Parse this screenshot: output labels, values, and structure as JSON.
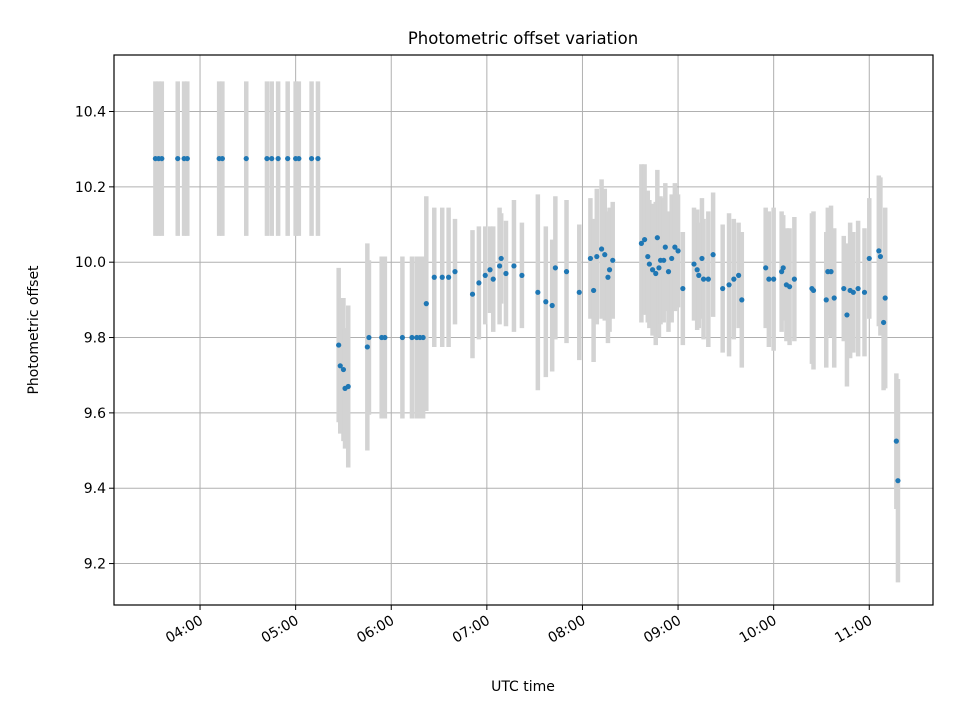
{
  "chart_data": {
    "type": "scatter",
    "title": "Photometric offset variation",
    "xlabel": "UTC time",
    "ylabel": "Photometric offset",
    "x_axis": "time",
    "xlim": [
      "03:06",
      "11:40"
    ],
    "ylim": [
      9.09,
      10.55
    ],
    "xticks": [
      "04:00",
      "05:00",
      "06:00",
      "07:00",
      "08:00",
      "09:00",
      "10:00",
      "11:00"
    ],
    "yticks": [
      9.2,
      9.4,
      9.6,
      9.8,
      10.0,
      10.2,
      10.4
    ],
    "grid": true,
    "colors": {
      "point": "#1f77b4",
      "errorbar": "#d3d3d3",
      "grid": "#b0b0b0"
    },
    "series": [
      {
        "error_bars": true,
        "points": [
          {
            "t": "03:32",
            "y": 10.275,
            "err": 0.205
          },
          {
            "t": "03:34",
            "y": 10.275,
            "err": 0.205
          },
          {
            "t": "03:36",
            "y": 10.275,
            "err": 0.205
          },
          {
            "t": "03:46",
            "y": 10.275,
            "err": 0.205
          },
          {
            "t": "03:50",
            "y": 10.275,
            "err": 0.205
          },
          {
            "t": "03:52",
            "y": 10.275,
            "err": 0.205
          },
          {
            "t": "04:12",
            "y": 10.275,
            "err": 0.205
          },
          {
            "t": "04:14",
            "y": 10.275,
            "err": 0.205
          },
          {
            "t": "04:29",
            "y": 10.275,
            "err": 0.205
          },
          {
            "t": "04:42",
            "y": 10.275,
            "err": 0.205
          },
          {
            "t": "04:45",
            "y": 10.275,
            "err": 0.205
          },
          {
            "t": "04:49",
            "y": 10.275,
            "err": 0.205
          },
          {
            "t": "04:55",
            "y": 10.275,
            "err": 0.205
          },
          {
            "t": "05:00",
            "y": 10.275,
            "err": 0.205
          },
          {
            "t": "05:02",
            "y": 10.275,
            "err": 0.205
          },
          {
            "t": "05:10",
            "y": 10.275,
            "err": 0.205
          },
          {
            "t": "05:14",
            "y": 10.275,
            "err": 0.205
          },
          {
            "t": "05:27",
            "y": 9.78,
            "err": 0.205
          },
          {
            "t": "05:28",
            "y": 9.725,
            "err": 0.18
          },
          {
            "t": "05:30",
            "y": 9.715,
            "err": 0.19
          },
          {
            "t": "05:31",
            "y": 9.665,
            "err": 0.16
          },
          {
            "t": "05:33",
            "y": 9.67,
            "err": 0.215
          },
          {
            "t": "05:45",
            "y": 9.775,
            "err": 0.275
          },
          {
            "t": "05:46",
            "y": 9.8,
            "err": 0.205
          },
          {
            "t": "05:54",
            "y": 9.8,
            "err": 0.215
          },
          {
            "t": "05:56",
            "y": 9.8,
            "err": 0.215
          },
          {
            "t": "06:07",
            "y": 9.8,
            "err": 0.215
          },
          {
            "t": "06:13",
            "y": 9.8,
            "err": 0.215
          },
          {
            "t": "06:16",
            "y": 9.8,
            "err": 0.215
          },
          {
            "t": "06:18",
            "y": 9.8,
            "err": 0.215
          },
          {
            "t": "06:20",
            "y": 9.8,
            "err": 0.215
          },
          {
            "t": "06:22",
            "y": 9.89,
            "err": 0.285
          },
          {
            "t": "06:27",
            "y": 9.96,
            "err": 0.185
          },
          {
            "t": "06:32",
            "y": 9.96,
            "err": 0.185
          },
          {
            "t": "06:36",
            "y": 9.96,
            "err": 0.185
          },
          {
            "t": "06:40",
            "y": 9.975,
            "err": 0.14
          },
          {
            "t": "06:51",
            "y": 9.915,
            "err": 0.17
          },
          {
            "t": "06:55",
            "y": 9.945,
            "err": 0.15
          },
          {
            "t": "06:59",
            "y": 9.965,
            "err": 0.13
          },
          {
            "t": "07:02",
            "y": 9.98,
            "err": 0.115
          },
          {
            "t": "07:04",
            "y": 9.955,
            "err": 0.14
          },
          {
            "t": "07:08",
            "y": 9.99,
            "err": 0.155
          },
          {
            "t": "07:09",
            "y": 10.01,
            "err": 0.12
          },
          {
            "t": "07:12",
            "y": 9.97,
            "err": 0.14
          },
          {
            "t": "07:17",
            "y": 9.99,
            "err": 0.175
          },
          {
            "t": "07:22",
            "y": 9.965,
            "err": 0.14
          },
          {
            "t": "07:32",
            "y": 9.92,
            "err": 0.26
          },
          {
            "t": "07:37",
            "y": 9.895,
            "err": 0.2
          },
          {
            "t": "07:41",
            "y": 9.885,
            "err": 0.175
          },
          {
            "t": "07:43",
            "y": 9.985,
            "err": 0.19
          },
          {
            "t": "07:50",
            "y": 9.975,
            "err": 0.19
          },
          {
            "t": "07:58",
            "y": 9.92,
            "err": 0.18
          },
          {
            "t": "08:05",
            "y": 10.01,
            "err": 0.16
          },
          {
            "t": "08:07",
            "y": 9.925,
            "err": 0.19
          },
          {
            "t": "08:09",
            "y": 10.015,
            "err": 0.18
          },
          {
            "t": "08:12",
            "y": 10.035,
            "err": 0.185
          },
          {
            "t": "08:14",
            "y": 10.02,
            "err": 0.175
          },
          {
            "t": "08:16",
            "y": 9.96,
            "err": 0.175
          },
          {
            "t": "08:17",
            "y": 9.98,
            "err": 0.165
          },
          {
            "t": "08:19",
            "y": 10.005,
            "err": 0.155
          },
          {
            "t": "08:37",
            "y": 10.05,
            "err": 0.21
          },
          {
            "t": "08:39",
            "y": 10.06,
            "err": 0.2
          },
          {
            "t": "08:41",
            "y": 10.015,
            "err": 0.175
          },
          {
            "t": "08:42",
            "y": 9.995,
            "err": 0.17
          },
          {
            "t": "08:44",
            "y": 9.98,
            "err": 0.175
          },
          {
            "t": "08:46",
            "y": 9.97,
            "err": 0.19
          },
          {
            "t": "08:47",
            "y": 10.065,
            "err": 0.18
          },
          {
            "t": "08:48",
            "y": 9.985,
            "err": 0.185
          },
          {
            "t": "08:49",
            "y": 10.005,
            "err": 0.17
          },
          {
            "t": "08:51",
            "y": 10.005,
            "err": 0.165
          },
          {
            "t": "08:52",
            "y": 10.04,
            "err": 0.17
          },
          {
            "t": "08:54",
            "y": 9.975,
            "err": 0.16
          },
          {
            "t": "08:56",
            "y": 10.01,
            "err": 0.17
          },
          {
            "t": "08:58",
            "y": 10.04,
            "err": 0.17
          },
          {
            "t": "09:00",
            "y": 10.03,
            "err": 0.15
          },
          {
            "t": "09:03",
            "y": 9.93,
            "err": 0.15
          },
          {
            "t": "09:10",
            "y": 9.995,
            "err": 0.15
          },
          {
            "t": "09:12",
            "y": 9.98,
            "err": 0.16
          },
          {
            "t": "09:13",
            "y": 9.965,
            "err": 0.14
          },
          {
            "t": "09:15",
            "y": 10.01,
            "err": 0.16
          },
          {
            "t": "09:16",
            "y": 9.955,
            "err": 0.16
          },
          {
            "t": "09:19",
            "y": 9.955,
            "err": 0.18
          },
          {
            "t": "09:22",
            "y": 10.02,
            "err": 0.165
          },
          {
            "t": "09:28",
            "y": 9.93,
            "err": 0.17
          },
          {
            "t": "09:32",
            "y": 9.94,
            "err": 0.19
          },
          {
            "t": "09:35",
            "y": 9.955,
            "err": 0.16
          },
          {
            "t": "09:38",
            "y": 9.965,
            "err": 0.14
          },
          {
            "t": "09:40",
            "y": 9.9,
            "err": 0.18
          },
          {
            "t": "09:55",
            "y": 9.985,
            "err": 0.16
          },
          {
            "t": "09:57",
            "y": 9.955,
            "err": 0.18
          },
          {
            "t": "10:00",
            "y": 9.955,
            "err": 0.19
          },
          {
            "t": "10:05",
            "y": 9.975,
            "err": 0.16
          },
          {
            "t": "10:06",
            "y": 9.985,
            "err": 0.14
          },
          {
            "t": "10:08",
            "y": 9.94,
            "err": 0.15
          },
          {
            "t": "10:10",
            "y": 9.935,
            "err": 0.155
          },
          {
            "t": "10:13",
            "y": 9.955,
            "err": 0.165
          },
          {
            "t": "10:24",
            "y": 9.93,
            "err": 0.2
          },
          {
            "t": "10:25",
            "y": 9.925,
            "err": 0.21
          },
          {
            "t": "10:33",
            "y": 9.9,
            "err": 0.18
          },
          {
            "t": "10:34",
            "y": 9.975,
            "err": 0.17
          },
          {
            "t": "10:36",
            "y": 9.975,
            "err": 0.175
          },
          {
            "t": "10:38",
            "y": 9.905,
            "err": 0.185
          },
          {
            "t": "10:44",
            "y": 9.93,
            "err": 0.14
          },
          {
            "t": "10:46",
            "y": 9.86,
            "err": 0.19
          },
          {
            "t": "10:48",
            "y": 9.925,
            "err": 0.18
          },
          {
            "t": "10:50",
            "y": 9.92,
            "err": 0.16
          },
          {
            "t": "10:53",
            "y": 9.93,
            "err": 0.18
          },
          {
            "t": "10:57",
            "y": 9.92,
            "err": 0.17
          },
          {
            "t": "11:00",
            "y": 10.01,
            "err": 0.16
          },
          {
            "t": "11:06",
            "y": 10.03,
            "err": 0.2
          },
          {
            "t": "11:07",
            "y": 10.015,
            "err": 0.21
          },
          {
            "t": "11:09",
            "y": 9.84,
            "err": 0.18
          },
          {
            "t": "11:10",
            "y": 9.905,
            "err": 0.24
          },
          {
            "t": "11:17",
            "y": 9.525,
            "err": 0.18
          },
          {
            "t": "11:18",
            "y": 9.42,
            "err": 0.27
          }
        ]
      }
    ]
  }
}
